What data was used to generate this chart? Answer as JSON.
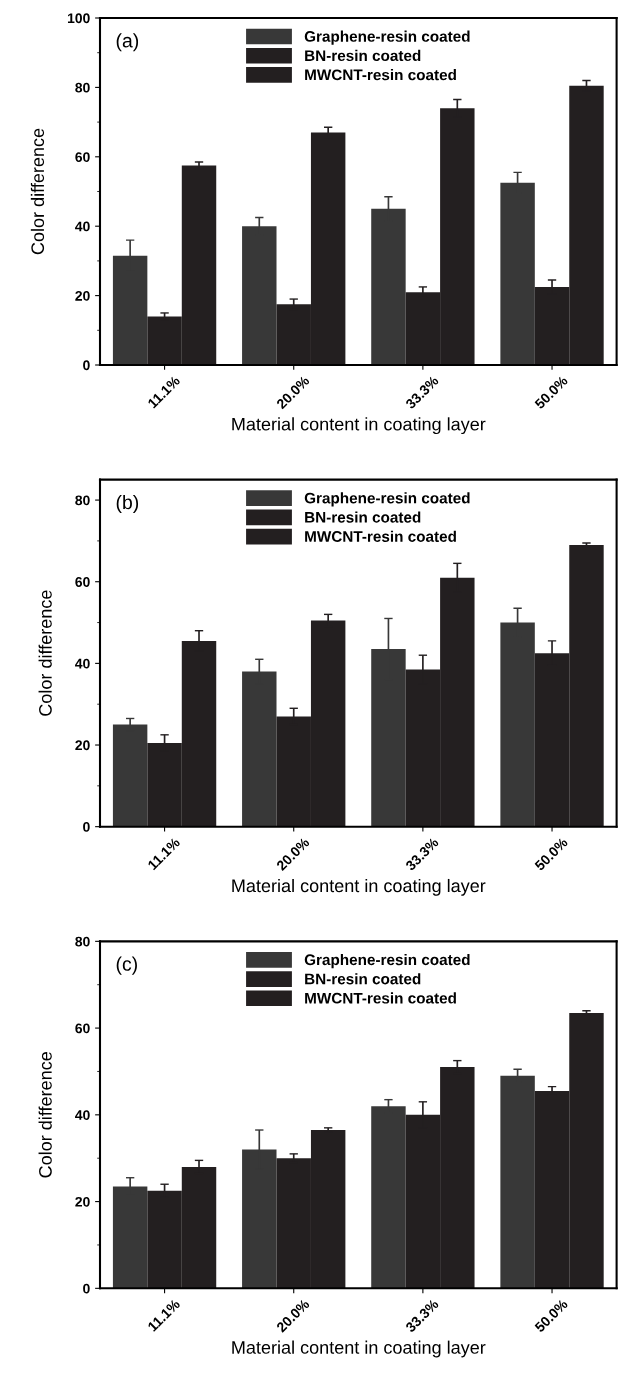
{
  "chart_data": [
    {
      "type": "bar",
      "xlabel": "Material content in coating layer",
      "ylabel": "Color difference",
      "annotations": [
        "(a)"
      ],
      "categories": [
        "11.1%",
        "20.0%",
        "33.3%",
        "50.0%"
      ],
      "ylim": [
        0,
        100
      ],
      "yticks": [
        0,
        20,
        40,
        60,
        80,
        100
      ],
      "legend": "top",
      "grid": false,
      "series": [
        {
          "name": "Graphene-resin coated",
          "color": "#383838",
          "values": [
            31.5,
            40,
            45,
            52.5
          ],
          "errors": [
            4.5,
            2.5,
            3.5,
            3
          ]
        },
        {
          "name": "BN-resin coated",
          "color": "#231f20",
          "values": [
            14,
            17.5,
            21,
            22.5
          ],
          "errors": [
            1,
            1.5,
            1.5,
            2
          ]
        },
        {
          "name": "MWCNT-resin coated",
          "color": "#231f20",
          "values": [
            57.5,
            67,
            74,
            80.5
          ],
          "errors": [
            1,
            1.5,
            2.5,
            1.5
          ]
        }
      ]
    },
    {
      "type": "bar",
      "xlabel": "Material content in coating layer",
      "ylabel": "Color difference",
      "annotations": [
        "(b)"
      ],
      "categories": [
        "11.1%",
        "20.0%",
        "33.3%",
        "50.0%"
      ],
      "ylim": [
        0,
        85
      ],
      "yticks": [
        0,
        20,
        40,
        60,
        80
      ],
      "legend": "top",
      "grid": false,
      "series": [
        {
          "name": "Graphene-resin coated",
          "color": "#383838",
          "values": [
            25,
            38,
            43.5,
            50
          ],
          "errors": [
            1.5,
            3,
            7.5,
            3.5
          ]
        },
        {
          "name": "BN-resin coated",
          "color": "#231f20",
          "values": [
            20.5,
            27,
            38.5,
            42.5
          ],
          "errors": [
            2,
            2,
            3.5,
            3
          ]
        },
        {
          "name": "MWCNT-resin coated",
          "color": "#231f20",
          "values": [
            45.5,
            50.5,
            61,
            69
          ],
          "errors": [
            2.5,
            1.5,
            3.5,
            0.5
          ]
        }
      ]
    },
    {
      "type": "bar",
      "xlabel": "Material content in coating layer",
      "ylabel": "Color difference",
      "annotations": [
        "(c)"
      ],
      "categories": [
        "11.1%",
        "20.0%",
        "33.3%",
        "50.0%"
      ],
      "ylim": [
        0,
        80
      ],
      "yticks": [
        0,
        20,
        40,
        60,
        80
      ],
      "legend": "top",
      "grid": false,
      "series": [
        {
          "name": "Graphene-resin coated",
          "color": "#383838",
          "values": [
            23.5,
            32,
            42,
            49
          ],
          "errors": [
            2,
            4.5,
            1.5,
            1.5
          ]
        },
        {
          "name": "BN-resin coated",
          "color": "#231f20",
          "values": [
            22.5,
            30,
            40,
            45.5
          ],
          "errors": [
            1.5,
            1,
            3,
            1
          ]
        },
        {
          "name": "MWCNT-resin coated",
          "color": "#231f20",
          "values": [
            28,
            36.5,
            51,
            63.5
          ],
          "errors": [
            1.5,
            0.5,
            1.5,
            0.5
          ]
        }
      ]
    }
  ]
}
